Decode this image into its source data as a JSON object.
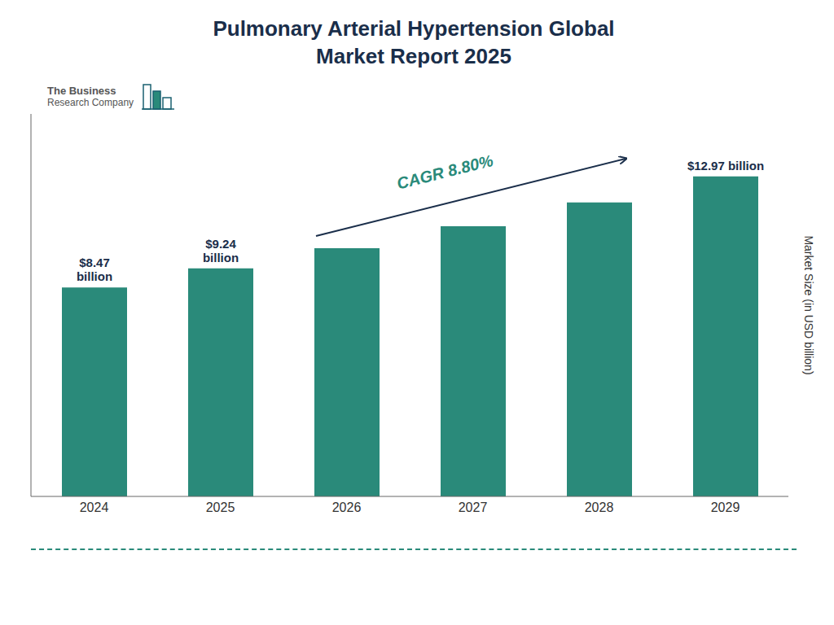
{
  "chart_data": {
    "type": "bar",
    "title": "Pulmonary Arterial Hypertension Global\nMarket Report 2025",
    "ylabel": "Market Size (in USD billion)",
    "categories": [
      "2024",
      "2025",
      "2026",
      "2027",
      "2028",
      "2029"
    ],
    "values": [
      8.47,
      9.24,
      10.06,
      10.95,
      11.91,
      12.97
    ],
    "color": "#2a8a7a",
    "ylim": [
      0,
      15.5
    ],
    "tick_labels": "x",
    "grid": false,
    "annotations": [
      {
        "text": "$8.47\nbillion",
        "category": "2024"
      },
      {
        "text": "$9.24\nbillion",
        "category": "2025"
      },
      {
        "text": "$12.97 billion",
        "category": "2029"
      },
      {
        "text": "CAGR 8.80%"
      },
      {
        "text": "The Business"
      },
      {
        "text": "Research Company"
      }
    ]
  }
}
